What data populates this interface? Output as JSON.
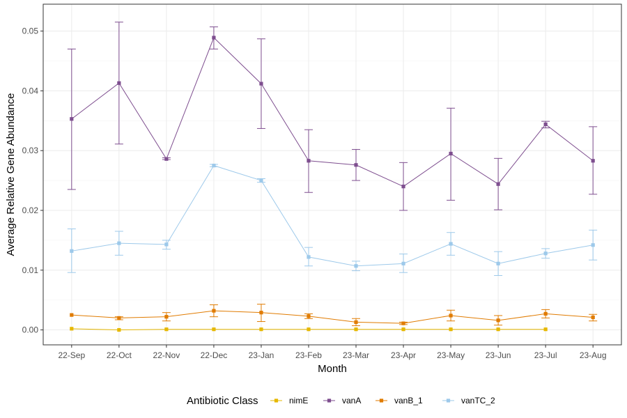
{
  "chart_data": {
    "type": "line",
    "xlabel": "Month",
    "ylabel": "Average Relative Gene Abundance",
    "categories": [
      "22-Sep",
      "22-Oct",
      "22-Nov",
      "22-Dec",
      "23-Jan",
      "23-Feb",
      "23-Mar",
      "23-Apr",
      "23-May",
      "23-Jun",
      "23-Jul",
      "23-Aug"
    ],
    "ylim": [
      -0.0025,
      0.0545
    ],
    "yticks": [
      0.0,
      0.01,
      0.02,
      0.03,
      0.04,
      0.05
    ],
    "ytick_labels": [
      "0.00",
      "0.01",
      "0.02",
      "0.03",
      "0.04",
      "0.05"
    ],
    "grid": true,
    "legend": {
      "title": "Antibiotic Class",
      "position": "bottom"
    },
    "series": [
      {
        "name": "nimE",
        "color": "#E6B800",
        "values": [
          0.0002,
          0.0,
          0.0001,
          0.0001,
          0.0001,
          0.0001,
          0.0001,
          0.0001,
          0.0001,
          0.0001,
          0.0001,
          null
        ],
        "lower": [
          0.0002,
          0.0,
          0.0001,
          0.0001,
          0.0001,
          0.0001,
          0.0001,
          0.0001,
          0.0001,
          0.0001,
          0.0001,
          null
        ],
        "upper": [
          0.0002,
          0.0,
          0.0001,
          0.0001,
          0.0001,
          0.0001,
          0.0001,
          0.0001,
          0.0001,
          0.0001,
          0.0001,
          null
        ]
      },
      {
        "name": "vanA",
        "color": "#7E4E8F",
        "values": [
          0.0353,
          0.0413,
          0.0286,
          0.0489,
          0.0412,
          0.0283,
          0.0276,
          0.024,
          0.0295,
          0.0244,
          0.0344,
          0.0283
        ],
        "lower": [
          0.0235,
          0.0311,
          0.0285,
          0.047,
          0.0337,
          0.023,
          0.025,
          0.02,
          0.0217,
          0.0201,
          0.0338,
          0.0227
        ],
        "upper": [
          0.047,
          0.0515,
          0.0288,
          0.0507,
          0.0487,
          0.0335,
          0.0302,
          0.028,
          0.0371,
          0.0287,
          0.0349,
          0.034
        ]
      },
      {
        "name": "vanB_1",
        "color": "#E07B00",
        "values": [
          0.0025,
          0.002,
          0.0022,
          0.0032,
          0.0029,
          0.0023,
          0.0013,
          0.0011,
          0.0024,
          0.0016,
          0.0027,
          0.0021
        ],
        "lower": [
          0.0025,
          0.0017,
          0.0015,
          0.0022,
          0.0014,
          0.0019,
          0.0007,
          0.0009,
          0.0015,
          0.0008,
          0.002,
          0.0015
        ],
        "upper": [
          0.0025,
          0.0022,
          0.0029,
          0.0042,
          0.0043,
          0.0027,
          0.0019,
          0.0013,
          0.0033,
          0.0024,
          0.0034,
          0.0026
        ]
      },
      {
        "name": "vanTC_2",
        "color": "#9DC9EA",
        "values": [
          0.0132,
          0.0145,
          0.0143,
          0.0275,
          0.025,
          0.0122,
          0.0107,
          0.0111,
          0.0144,
          0.0111,
          0.0128,
          0.0142
        ],
        "lower": [
          0.0096,
          0.0125,
          0.0135,
          0.0273,
          0.0247,
          0.0107,
          0.0099,
          0.0096,
          0.0125,
          0.0091,
          0.012,
          0.0117
        ],
        "upper": [
          0.0169,
          0.0165,
          0.015,
          0.0277,
          0.0253,
          0.0138,
          0.0115,
          0.0127,
          0.0163,
          0.0131,
          0.0136,
          0.0167
        ]
      }
    ]
  }
}
